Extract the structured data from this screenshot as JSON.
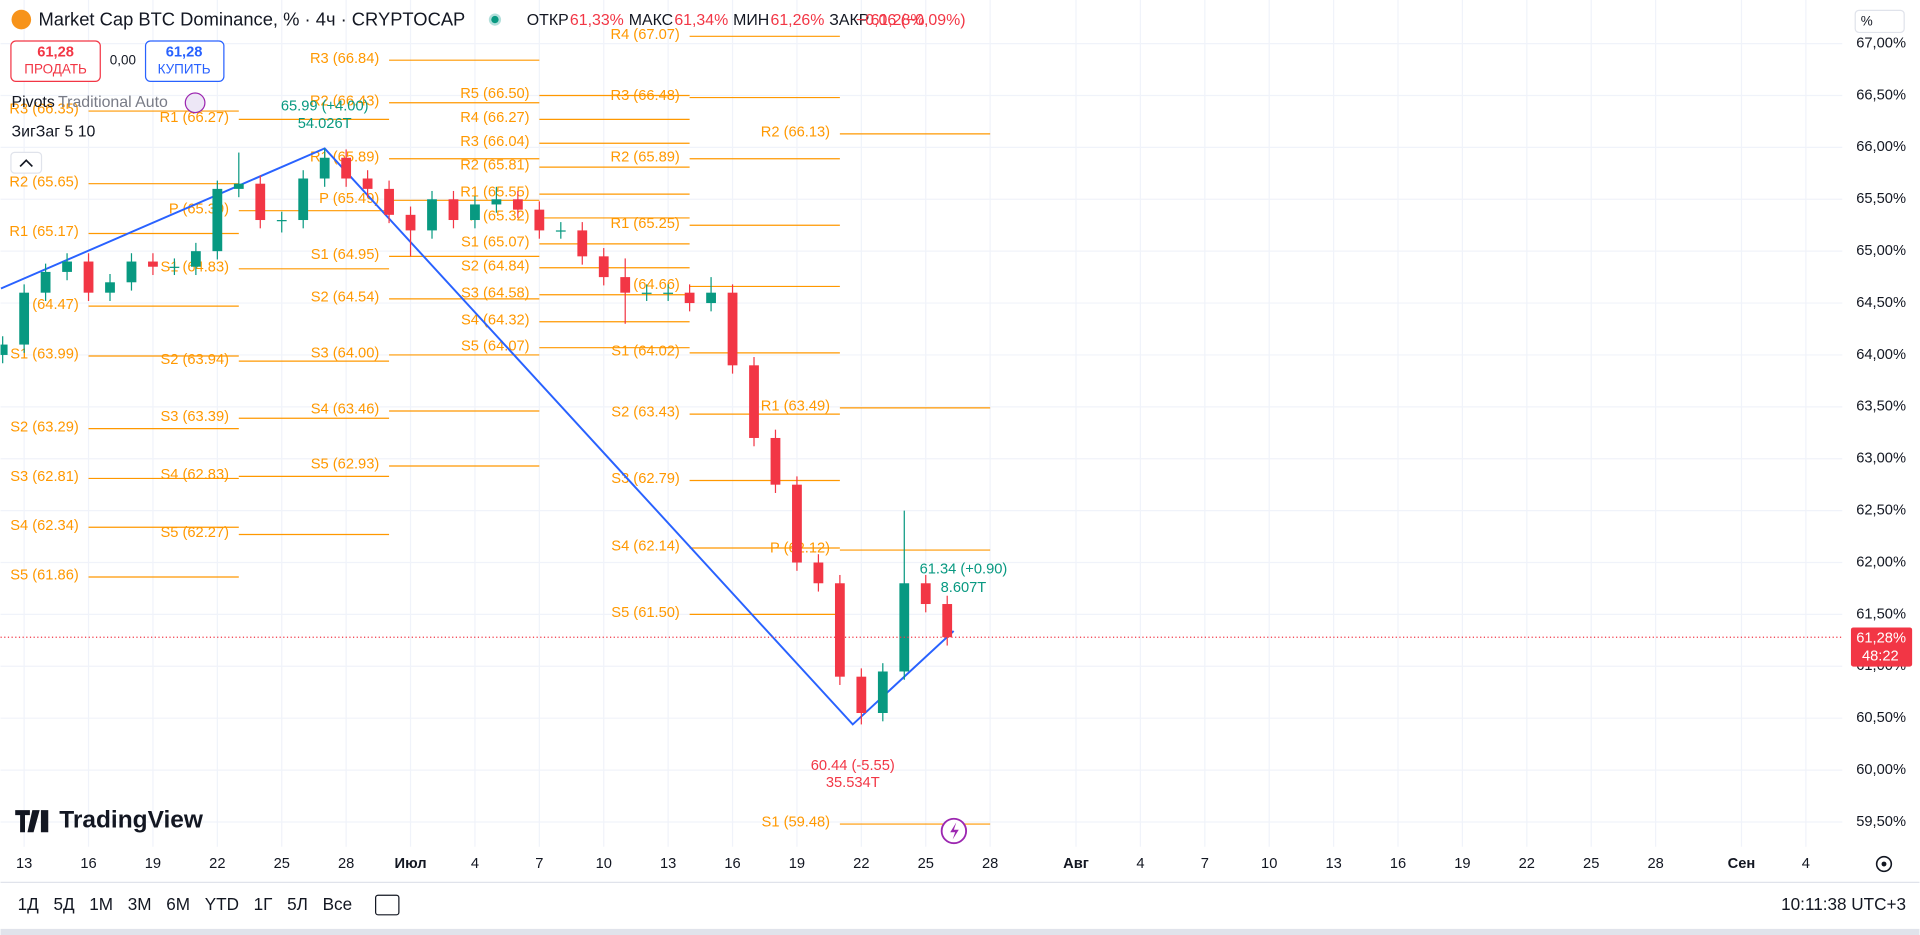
{
  "ui": {
    "title": "Market Cap BTC Dominance, % · 4ч · CRYPTOCAP",
    "ohlc": [
      {
        "key": "ОТКР",
        "val": "61,33%"
      },
      {
        "key": "МАКС",
        "val": "61,34%"
      },
      {
        "key": "МИН",
        "val": "61,26%"
      },
      {
        "key": "ЗАКР",
        "val": "61,28%"
      }
    ],
    "change": "−0,06 (−0,09%)",
    "sell": {
      "price": "61,28",
      "label": "ПРОДАТЬ"
    },
    "spread": "0,00",
    "buy": {
      "price": "61,28",
      "label": "КУПИТЬ"
    },
    "indicators": {
      "pivots": "Pivots",
      "pivots_args": "Traditional Auto",
      "zigzag": "ЗигЗаг 5 10"
    },
    "scale_mode": "%",
    "logo": "TradingView",
    "ranges": [
      "1Д",
      "5Д",
      "1М",
      "3М",
      "6М",
      "YTD",
      "1Г",
      "5Л",
      "Все"
    ],
    "clock": "10:11:38 UTC+3"
  },
  "chart_data": {
    "type": "candlestick",
    "title": "Market Cap BTC Dominance, % · 4ч · CRYPTOCAP",
    "up_color": "#089981",
    "down_color": "#f23645",
    "x": [
      -1,
      0,
      1,
      2,
      3,
      4,
      5,
      6,
      7,
      8,
      9,
      10,
      11,
      12,
      13,
      14,
      15,
      16,
      17,
      18,
      19,
      20,
      21,
      22,
      23,
      24,
      25,
      26,
      27,
      28,
      29,
      30,
      31,
      32,
      33,
      34,
      35,
      36,
      37,
      38,
      39,
      40,
      41,
      42,
      43
    ],
    "open": [
      64.0,
      64.1,
      64.6,
      64.8,
      64.9,
      64.6,
      64.7,
      64.9,
      64.85,
      64.85,
      65.0,
      65.6,
      65.65,
      65.3,
      65.3,
      65.7,
      65.9,
      65.7,
      65.6,
      65.35,
      65.2,
      65.5,
      65.3,
      65.45,
      65.5,
      65.4,
      65.2,
      65.2,
      64.95,
      64.75,
      64.6,
      64.6,
      64.6,
      64.5,
      64.6,
      63.9,
      63.2,
      62.75,
      62.0,
      61.8,
      60.9,
      60.55,
      60.95,
      61.8,
      61.6
    ],
    "high": [
      64.18,
      64.68,
      64.88,
      64.98,
      64.98,
      64.78,
      64.98,
      64.98,
      64.93,
      65.08,
      65.68,
      65.95,
      65.73,
      65.38,
      65.78,
      65.99,
      65.98,
      65.78,
      65.68,
      65.43,
      65.58,
      65.58,
      65.53,
      65.62,
      65.58,
      65.48,
      65.28,
      65.28,
      65.03,
      64.93,
      64.68,
      64.68,
      64.68,
      64.75,
      64.68,
      63.98,
      63.28,
      62.83,
      62.08,
      61.88,
      60.98,
      61.03,
      62.5,
      61.88,
      61.68
    ],
    "low": [
      63.92,
      64.02,
      64.52,
      64.72,
      64.52,
      64.52,
      64.62,
      64.77,
      64.77,
      64.77,
      64.92,
      65.52,
      65.22,
      65.18,
      65.22,
      65.62,
      65.62,
      65.52,
      65.27,
      64.95,
      65.12,
      65.22,
      65.22,
      65.37,
      65.32,
      65.12,
      65.12,
      64.87,
      64.67,
      64.3,
      64.52,
      64.52,
      64.42,
      64.42,
      63.82,
      63.12,
      62.67,
      61.92,
      61.72,
      60.82,
      60.44,
      60.47,
      60.87,
      61.52,
      61.2
    ],
    "close": [
      64.1,
      64.6,
      64.8,
      64.9,
      64.6,
      64.7,
      64.9,
      64.85,
      64.85,
      65.0,
      65.6,
      65.65,
      65.3,
      65.3,
      65.7,
      65.9,
      65.7,
      65.6,
      65.35,
      65.2,
      65.5,
      65.3,
      65.45,
      65.5,
      65.4,
      65.2,
      65.2,
      64.95,
      64.75,
      64.6,
      64.6,
      64.6,
      64.5,
      64.6,
      63.9,
      63.2,
      62.75,
      62.0,
      61.8,
      60.9,
      60.55,
      60.95,
      61.8,
      61.6,
      61.28
    ],
    "xlim": [
      -1.1,
      84.7
    ],
    "ylim": [
      59.26,
      67.42
    ],
    "grid": true,
    "xticks": [
      {
        "value": 0,
        "label": "13"
      },
      {
        "value": 3,
        "label": "16"
      },
      {
        "value": 6,
        "label": "19"
      },
      {
        "value": 9,
        "label": "22"
      },
      {
        "value": 12,
        "label": "25"
      },
      {
        "value": 15,
        "label": "28"
      },
      {
        "value": 18,
        "label": "Июл"
      },
      {
        "value": 21,
        "label": "4"
      },
      {
        "value": 24,
        "label": "7"
      },
      {
        "value": 27,
        "label": "10"
      },
      {
        "value": 30,
        "label": "13"
      },
      {
        "value": 33,
        "label": "16"
      },
      {
        "value": 36,
        "label": "19"
      },
      {
        "value": 39,
        "label": "22"
      },
      {
        "value": 42,
        "label": "25"
      },
      {
        "value": 45,
        "label": "28"
      },
      {
        "value": 49,
        "label": "Авг"
      },
      {
        "value": 52,
        "label": "4"
      },
      {
        "value": 55,
        "label": "7"
      },
      {
        "value": 58,
        "label": "10"
      },
      {
        "value": 61,
        "label": "13"
      },
      {
        "value": 64,
        "label": "16"
      },
      {
        "value": 67,
        "label": "19"
      },
      {
        "value": 70,
        "label": "22"
      },
      {
        "value": 73,
        "label": "25"
      },
      {
        "value": 76,
        "label": "28"
      },
      {
        "value": 80,
        "label": "Сен"
      },
      {
        "value": 83,
        "label": "4"
      }
    ],
    "yticks": [
      {
        "value": 59.5,
        "label": "59,50%"
      },
      {
        "value": 60,
        "label": "60,00%"
      },
      {
        "value": 60.5,
        "label": "60,50%"
      },
      {
        "value": 61,
        "label": "61,00%"
      },
      {
        "value": 61.5,
        "label": "61,50%"
      },
      {
        "value": 62,
        "label": "62,00%"
      },
      {
        "value": 62.5,
        "label": "62,50%"
      },
      {
        "value": 63,
        "label": "63,00%"
      },
      {
        "value": 63.5,
        "label": "63,50%"
      },
      {
        "value": 64,
        "label": "64,00%"
      },
      {
        "value": 64.5,
        "label": "64,50%"
      },
      {
        "value": 65,
        "label": "65,00%"
      },
      {
        "value": 65.5,
        "label": "65,50%"
      },
      {
        "value": 66,
        "label": "66,00%"
      },
      {
        "value": 66.5,
        "label": "66,50%"
      },
      {
        "value": 67,
        "label": "67,00%"
      }
    ],
    "pivot_color": "#ff9800",
    "pivots": [
      {
        "start": 3,
        "end": 10,
        "levels": [
          {
            "label": "R3 (66.35)",
            "value": 66.35
          },
          {
            "label": "R2 (65.65)",
            "value": 65.65
          },
          {
            "label": "R1 (65.17)",
            "value": 65.17
          },
          {
            "label": "P (64.47)",
            "value": 64.47
          },
          {
            "label": "S1 (63.99)",
            "value": 63.99
          },
          {
            "label": "S2 (63.29)",
            "value": 63.29
          },
          {
            "label": "S3 (62.81)",
            "value": 62.81
          },
          {
            "label": "S4 (62.34)",
            "value": 62.34
          },
          {
            "label": "S5 (61.86)",
            "value": 61.86
          }
        ]
      },
      {
        "start": 10,
        "end": 17,
        "levels": [
          {
            "label": "R1 (66.27)",
            "value": 66.27
          },
          {
            "label": "P (65.39)",
            "value": 65.39
          },
          {
            "label": "S1 (64.83)",
            "value": 64.83
          },
          {
            "label": "S2 (63.94)",
            "value": 63.94
          },
          {
            "label": "S3 (63.39)",
            "value": 63.39
          },
          {
            "label": "S4 (62.83)",
            "value": 62.83
          },
          {
            "label": "S5 (62.27)",
            "value": 62.27
          }
        ]
      },
      {
        "start": 17,
        "end": 24,
        "levels": [
          {
            "label": "R3 (66.84)",
            "value": 66.84
          },
          {
            "label": "R2 (66.43)",
            "value": 66.43
          },
          {
            "label": "R1 (65.89)",
            "value": 65.89
          },
          {
            "label": "P (65.49)",
            "value": 65.49
          },
          {
            "label": "S1 (64.95)",
            "value": 64.95
          },
          {
            "label": "S2 (64.54)",
            "value": 64.54
          },
          {
            "label": "S3 (64.00)",
            "value": 64.0
          },
          {
            "label": "S4 (63.46)",
            "value": 63.46
          },
          {
            "label": "S5 (62.93)",
            "value": 62.93
          }
        ]
      },
      {
        "start": 24,
        "end": 31,
        "levels": [
          {
            "label": "R5 (66.50)",
            "value": 66.5
          },
          {
            "label": "R4 (66.27)",
            "value": 66.27
          },
          {
            "label": "R3 (66.04)",
            "value": 66.04
          },
          {
            "label": "R2 (65.81)",
            "value": 65.81
          },
          {
            "label": "R1 (65.55)",
            "value": 65.55
          },
          {
            "label": "P (65.32)",
            "value": 65.32
          },
          {
            "label": "S1 (65.07)",
            "value": 65.07
          },
          {
            "label": "S2 (64.84)",
            "value": 64.84
          },
          {
            "label": "S3 (64.58)",
            "value": 64.58
          },
          {
            "label": "S4 (64.32)",
            "value": 64.32
          },
          {
            "label": "S5 (64.07)",
            "value": 64.07
          }
        ]
      },
      {
        "start": 31,
        "end": 38,
        "levels": [
          {
            "label": "R4 (67.07)",
            "value": 67.07
          },
          {
            "label": "R3 (66.48)",
            "value": 66.48
          },
          {
            "label": "R2 (65.89)",
            "value": 65.89
          },
          {
            "label": "R1 (65.25)",
            "value": 65.25
          },
          {
            "label": "P (64.66)",
            "value": 64.66
          },
          {
            "label": "S1 (64.02)",
            "value": 64.02
          },
          {
            "label": "S2 (63.43)",
            "value": 63.43
          },
          {
            "label": "S3 (62.79)",
            "value": 62.79
          },
          {
            "label": "S4 (62.14)",
            "value": 62.14
          },
          {
            "label": "S5 (61.50)",
            "value": 61.5
          }
        ]
      },
      {
        "start": 38,
        "end": 45,
        "levels": [
          {
            "label": "R2 (66.13)",
            "value": 66.13
          },
          {
            "label": "R1 (63.49)",
            "value": 63.49
          },
          {
            "label": "P (62.12)",
            "value": 62.12
          },
          {
            "label": "S1 (59.48)",
            "value": 59.48
          }
        ]
      }
    ],
    "zigzag": {
      "color": "#2962ff",
      "x": [
        -1.08,
        14,
        38.6,
        43.3
      ],
      "values": [
        64.64,
        65.99,
        60.44,
        61.34
      ],
      "labels": [
        null,
        [
          "65.99 (+4.00)",
          "54.026T"
        ],
        [
          "60.44 (-5.55)",
          "35.534T"
        ],
        [
          "61.34 (+0.90)",
          "8.607T"
        ]
      ]
    },
    "last_price": {
      "value": 61.28,
      "label": "61,28%"
    },
    "countdown": "48:22"
  }
}
